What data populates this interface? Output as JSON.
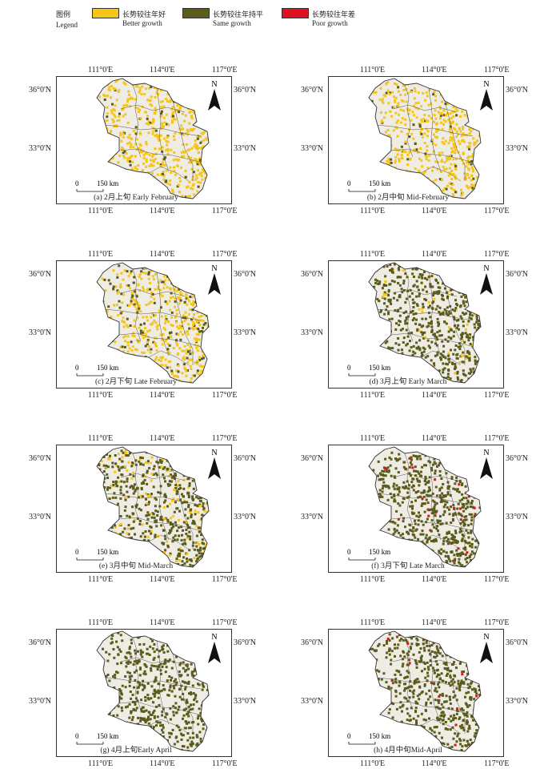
{
  "legend": {
    "title_zh": "图例",
    "title_en": "Legend",
    "items": [
      {
        "zh": "长势较往年好",
        "en": "Better growth",
        "color": "#f5c518"
      },
      {
        "zh": "长势较往年持平",
        "en": "Same  growth",
        "color": "#5b5b1c"
      },
      {
        "zh": "长势较往年差",
        "en": "Poor growth",
        "color": "#e01020"
      }
    ]
  },
  "colors": {
    "better": "#f5c518",
    "same": "#5b5b1c",
    "poor": "#e01020",
    "nodata": "#efece4",
    "boundary": "#333333"
  },
  "axes": {
    "lon_ticks": [
      "111°0'E",
      "114°0'E",
      "117°0'E"
    ],
    "lat_ticks": [
      "36°0'N",
      "33°0'N"
    ]
  },
  "north_label": "N",
  "scale": {
    "zero": "0",
    "label": "150 km"
  },
  "panels": [
    {
      "caption": "(a) 2月上旬 Early February",
      "better": 0.55,
      "same": 0.05,
      "poor": 0.0
    },
    {
      "caption": "(b) 2月中旬 Mid-February",
      "better": 0.55,
      "same": 0.05,
      "poor": 0.0
    },
    {
      "caption": "(c) 2月下旬 Late February",
      "better": 0.45,
      "same": 0.15,
      "poor": 0.0
    },
    {
      "caption": "(d) 3月上旬  Early March",
      "better": 0.05,
      "same": 0.6,
      "poor": 0.0
    },
    {
      "caption": "(e) 3月中旬   Mid-March",
      "better": 0.15,
      "same": 0.55,
      "poor": 0.0
    },
    {
      "caption": "(f) 3月下旬 Late March",
      "better": 0.0,
      "same": 0.7,
      "poor": 0.03
    },
    {
      "caption": "(g) 4月上旬Early April",
      "better": 0.0,
      "same": 0.55,
      "poor": 0.0
    },
    {
      "caption": "(h) 4月中旬Mid-April",
      "better": 0.0,
      "same": 0.6,
      "poor": 0.02
    }
  ]
}
